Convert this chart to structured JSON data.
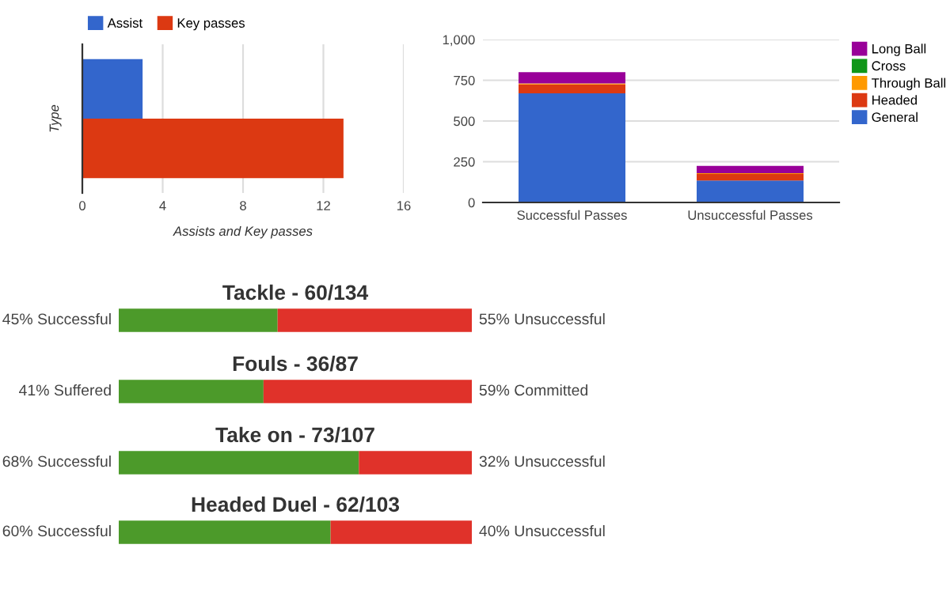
{
  "chart_data": [
    {
      "type": "bar",
      "orientation": "horizontal",
      "categories": [
        null
      ],
      "xlabel": "Assists and Key passes",
      "ylabel": "Type",
      "xlim": [
        0,
        16
      ],
      "xticks": [
        0,
        4,
        8,
        12,
        16
      ],
      "grid": "x",
      "legend": "top left",
      "series": [
        {
          "name": "Assist",
          "color": "#3366cc",
          "values": [
            3
          ]
        },
        {
          "name": "Key passes",
          "color": "#dc3912",
          "values": [
            13
          ]
        }
      ]
    },
    {
      "type": "bar",
      "stacked": true,
      "categories": [
        "Successful Passes",
        "Unsuccessful Passes"
      ],
      "ylim": [
        0,
        1000
      ],
      "yticks": [
        0,
        250,
        500,
        {
          "value": 750,
          "label": "750"
        },
        {
          "value": 1000,
          "label": "1,000"
        }
      ],
      "grid": "y",
      "legend": "right",
      "series": [
        {
          "name": "General",
          "color": "#3366cc",
          "values": [
            670,
            135
          ]
        },
        {
          "name": "Headed",
          "color": "#dc3912",
          "values": [
            55,
            40
          ]
        },
        {
          "name": "Through Ball",
          "color": "#ff9900",
          "values": [
            5,
            5
          ]
        },
        {
          "name": "Cross",
          "color": "#109618",
          "values": [
            0,
            0
          ]
        },
        {
          "name": "Long Ball",
          "color": "#990099",
          "values": [
            70,
            45
          ]
        }
      ]
    },
    {
      "type": "bar",
      "orientation": "horizontal",
      "stacked": true,
      "title": "Tackle - 60/134",
      "categories": [
        null
      ],
      "xlim": [
        0,
        100
      ],
      "tick_labels": false,
      "series": [
        {
          "color": "#4c9a2a",
          "values": [
            45
          ],
          "value_labels": [
            "45% Successful"
          ]
        },
        {
          "color": "#e0322a",
          "values": [
            55
          ],
          "value_labels": [
            "55% Unsuccessful"
          ]
        }
      ]
    },
    {
      "type": "bar",
      "orientation": "horizontal",
      "stacked": true,
      "title": "Fouls - 36/87",
      "categories": [
        null
      ],
      "xlim": [
        0,
        100
      ],
      "tick_labels": false,
      "series": [
        {
          "color": "#4c9a2a",
          "values": [
            41
          ],
          "value_labels": [
            "41% Suffered"
          ]
        },
        {
          "color": "#e0322a",
          "values": [
            59
          ],
          "value_labels": [
            "59% Committed"
          ]
        }
      ]
    },
    {
      "type": "bar",
      "orientation": "horizontal",
      "stacked": true,
      "title": "Take on - 73/107",
      "categories": [
        null
      ],
      "xlim": [
        0,
        100
      ],
      "tick_labels": false,
      "series": [
        {
          "color": "#4c9a2a",
          "values": [
            68
          ],
          "value_labels": [
            "68% Successful"
          ]
        },
        {
          "color": "#e0322a",
          "values": [
            32
          ],
          "value_labels": [
            "32% Unsuccessful"
          ]
        }
      ]
    },
    {
      "type": "bar",
      "orientation": "horizontal",
      "stacked": true,
      "title": "Headed Duel - 62/103",
      "categories": [
        null
      ],
      "xlim": [
        0,
        100
      ],
      "tick_labels": false,
      "series": [
        {
          "color": "#4c9a2a",
          "values": [
            60
          ],
          "value_labels": [
            "60% Successful"
          ]
        },
        {
          "color": "#e0322a",
          "values": [
            40
          ],
          "value_labels": [
            "40% Unsuccessful"
          ]
        }
      ]
    }
  ]
}
